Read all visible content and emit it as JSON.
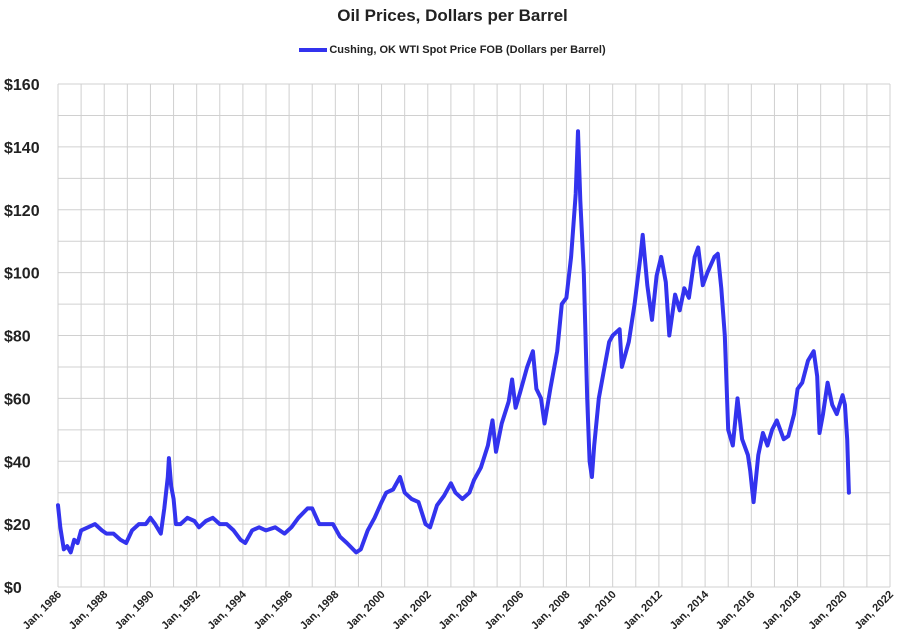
{
  "chart_data": {
    "type": "line",
    "title": "Oil Prices, Dollars per Barrel",
    "xlabel": "",
    "ylabel": "",
    "xlim": [
      1986,
      2022
    ],
    "ylim": [
      0,
      160
    ],
    "yticks": [
      0,
      20,
      40,
      60,
      80,
      100,
      120,
      140,
      160
    ],
    "ytick_labels": [
      "$0",
      "$20",
      "$40",
      "$60",
      "$80",
      "$100",
      "$120",
      "$140",
      "$160"
    ],
    "xticks": [
      1986,
      1988,
      1990,
      1992,
      1994,
      1996,
      1998,
      2000,
      2002,
      2004,
      2006,
      2008,
      2010,
      2012,
      2014,
      2016,
      2018,
      2020,
      2022
    ],
    "xtick_labels": [
      "Jan, 1986",
      "Jan, 1988",
      "Jan, 1990",
      "Jan, 1992",
      "Jan, 1994",
      "Jan, 1996",
      "Jan, 1998",
      "Jan, 2000",
      "Jan, 2002",
      "Jan, 2004",
      "Jan, 2006",
      "Jan, 2008",
      "Jan, 2010",
      "Jan, 2012",
      "Jan, 2014",
      "Jan, 2016",
      "Jan, 2018",
      "Jan, 2020",
      "Jan, 2022"
    ],
    "grid": true,
    "legend_position": "top-center",
    "series": [
      {
        "name": "Cushing, OK WTI Spot Price FOB (Dollars per Barrel)",
        "color": "#3333ee",
        "points": [
          [
            1986.0,
            26
          ],
          [
            1986.1,
            19
          ],
          [
            1986.25,
            12
          ],
          [
            1986.4,
            13
          ],
          [
            1986.55,
            11
          ],
          [
            1986.7,
            15
          ],
          [
            1986.85,
            14
          ],
          [
            1987.0,
            18
          ],
          [
            1987.3,
            19
          ],
          [
            1987.6,
            20
          ],
          [
            1987.9,
            18
          ],
          [
            1988.1,
            17
          ],
          [
            1988.4,
            17
          ],
          [
            1988.7,
            15
          ],
          [
            1988.95,
            14
          ],
          [
            1989.2,
            18
          ],
          [
            1989.5,
            20
          ],
          [
            1989.8,
            20
          ],
          [
            1990.0,
            22
          ],
          [
            1990.2,
            20
          ],
          [
            1990.45,
            17
          ],
          [
            1990.6,
            25
          ],
          [
            1990.75,
            35
          ],
          [
            1990.8,
            41
          ],
          [
            1990.9,
            32
          ],
          [
            1991.0,
            28
          ],
          [
            1991.1,
            20
          ],
          [
            1991.3,
            20
          ],
          [
            1991.6,
            22
          ],
          [
            1991.9,
            21
          ],
          [
            1992.1,
            19
          ],
          [
            1992.4,
            21
          ],
          [
            1992.7,
            22
          ],
          [
            1993.0,
            20
          ],
          [
            1993.3,
            20
          ],
          [
            1993.6,
            18
          ],
          [
            1993.9,
            15
          ],
          [
            1994.1,
            14
          ],
          [
            1994.4,
            18
          ],
          [
            1994.7,
            19
          ],
          [
            1995.0,
            18
          ],
          [
            1995.4,
            19
          ],
          [
            1995.8,
            17
          ],
          [
            1996.1,
            19
          ],
          [
            1996.4,
            22
          ],
          [
            1996.8,
            25
          ],
          [
            1997.0,
            25
          ],
          [
            1997.3,
            20
          ],
          [
            1997.6,
            20
          ],
          [
            1997.9,
            20
          ],
          [
            1998.2,
            16
          ],
          [
            1998.5,
            14
          ],
          [
            1998.9,
            11
          ],
          [
            1999.1,
            12
          ],
          [
            1999.4,
            18
          ],
          [
            1999.7,
            22
          ],
          [
            2000.0,
            27
          ],
          [
            2000.2,
            30
          ],
          [
            2000.5,
            31
          ],
          [
            2000.8,
            35
          ],
          [
            2001.0,
            30
          ],
          [
            2001.3,
            28
          ],
          [
            2001.6,
            27
          ],
          [
            2001.9,
            20
          ],
          [
            2002.1,
            19
          ],
          [
            2002.4,
            26
          ],
          [
            2002.7,
            29
          ],
          [
            2003.0,
            33
          ],
          [
            2003.2,
            30
          ],
          [
            2003.5,
            28
          ],
          [
            2003.8,
            30
          ],
          [
            2004.0,
            34
          ],
          [
            2004.3,
            38
          ],
          [
            2004.6,
            45
          ],
          [
            2004.8,
            53
          ],
          [
            2004.95,
            43
          ],
          [
            2005.2,
            52
          ],
          [
            2005.5,
            59
          ],
          [
            2005.65,
            66
          ],
          [
            2005.8,
            57
          ],
          [
            2006.0,
            62
          ],
          [
            2006.3,
            70
          ],
          [
            2006.55,
            75
          ],
          [
            2006.7,
            63
          ],
          [
            2006.9,
            60
          ],
          [
            2007.05,
            52
          ],
          [
            2007.3,
            63
          ],
          [
            2007.6,
            75
          ],
          [
            2007.8,
            90
          ],
          [
            2008.0,
            92
          ],
          [
            2008.2,
            105
          ],
          [
            2008.4,
            125
          ],
          [
            2008.5,
            145
          ],
          [
            2008.6,
            123
          ],
          [
            2008.75,
            100
          ],
          [
            2008.9,
            60
          ],
          [
            2009.0,
            40
          ],
          [
            2009.1,
            35
          ],
          [
            2009.2,
            45
          ],
          [
            2009.4,
            60
          ],
          [
            2009.6,
            68
          ],
          [
            2009.85,
            78
          ],
          [
            2010.0,
            80
          ],
          [
            2010.3,
            82
          ],
          [
            2010.4,
            70
          ],
          [
            2010.7,
            78
          ],
          [
            2010.95,
            90
          ],
          [
            2011.2,
            105
          ],
          [
            2011.3,
            112
          ],
          [
            2011.5,
            96
          ],
          [
            2011.7,
            85
          ],
          [
            2011.9,
            99
          ],
          [
            2012.1,
            105
          ],
          [
            2012.3,
            97
          ],
          [
            2012.45,
            80
          ],
          [
            2012.7,
            93
          ],
          [
            2012.9,
            88
          ],
          [
            2013.1,
            95
          ],
          [
            2013.3,
            92
          ],
          [
            2013.55,
            105
          ],
          [
            2013.7,
            108
          ],
          [
            2013.9,
            96
          ],
          [
            2014.1,
            100
          ],
          [
            2014.4,
            105
          ],
          [
            2014.55,
            106
          ],
          [
            2014.7,
            95
          ],
          [
            2014.85,
            80
          ],
          [
            2015.0,
            50
          ],
          [
            2015.2,
            45
          ],
          [
            2015.4,
            60
          ],
          [
            2015.6,
            47
          ],
          [
            2015.85,
            42
          ],
          [
            2015.95,
            37
          ],
          [
            2016.05,
            30
          ],
          [
            2016.1,
            27
          ],
          [
            2016.3,
            42
          ],
          [
            2016.5,
            49
          ],
          [
            2016.7,
            45
          ],
          [
            2016.9,
            50
          ],
          [
            2017.1,
            53
          ],
          [
            2017.4,
            47
          ],
          [
            2017.6,
            48
          ],
          [
            2017.85,
            55
          ],
          [
            2018.0,
            63
          ],
          [
            2018.2,
            65
          ],
          [
            2018.45,
            72
          ],
          [
            2018.7,
            75
          ],
          [
            2018.85,
            67
          ],
          [
            2018.95,
            49
          ],
          [
            2019.1,
            55
          ],
          [
            2019.3,
            65
          ],
          [
            2019.5,
            58
          ],
          [
            2019.7,
            55
          ],
          [
            2019.95,
            61
          ],
          [
            2020.05,
            58
          ],
          [
            2020.15,
            47
          ],
          [
            2020.22,
            30
          ]
        ]
      }
    ]
  }
}
